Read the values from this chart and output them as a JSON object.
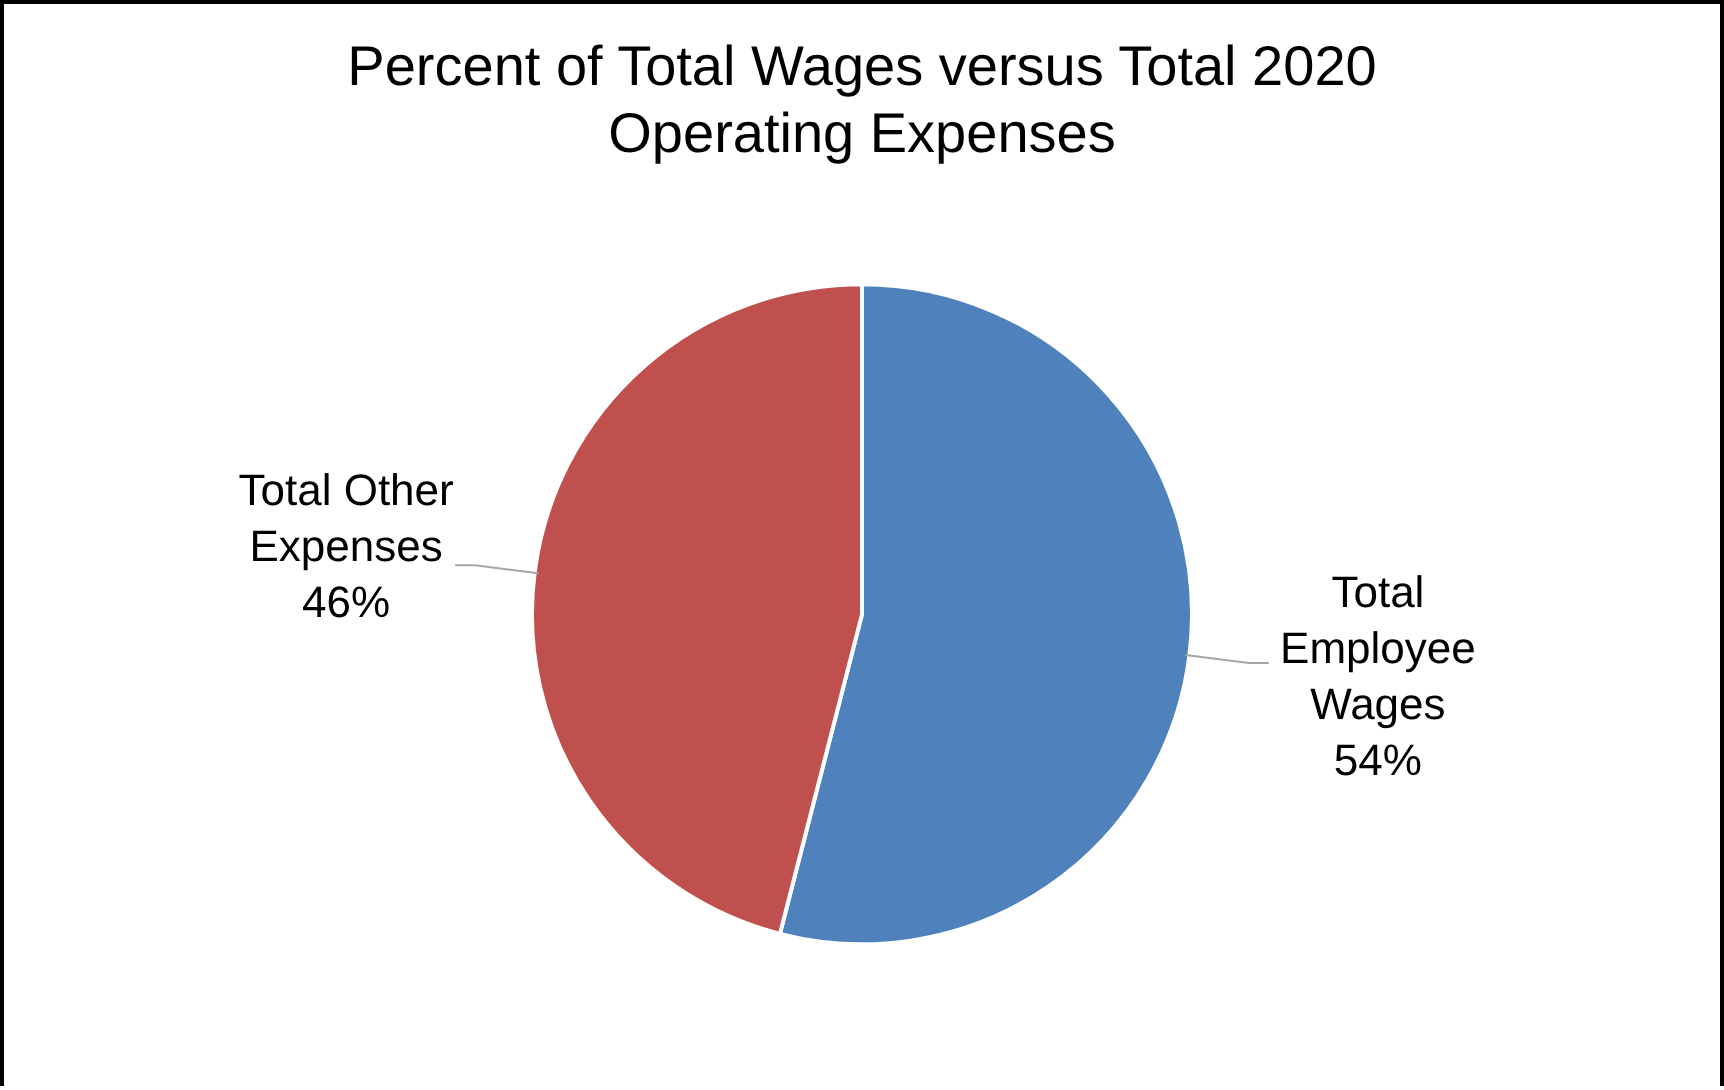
{
  "chart_data": {
    "type": "pie",
    "title": "Percent of Total Wages versus Total 2020 Operating Expenses",
    "categories": [
      "Total Employee Wages",
      "Total Other Expenses"
    ],
    "values": [
      54,
      46
    ],
    "colors": [
      "#4f81bd",
      "#c0504d"
    ],
    "value_labels": [
      "54%",
      "46%"
    ],
    "legend": false
  }
}
